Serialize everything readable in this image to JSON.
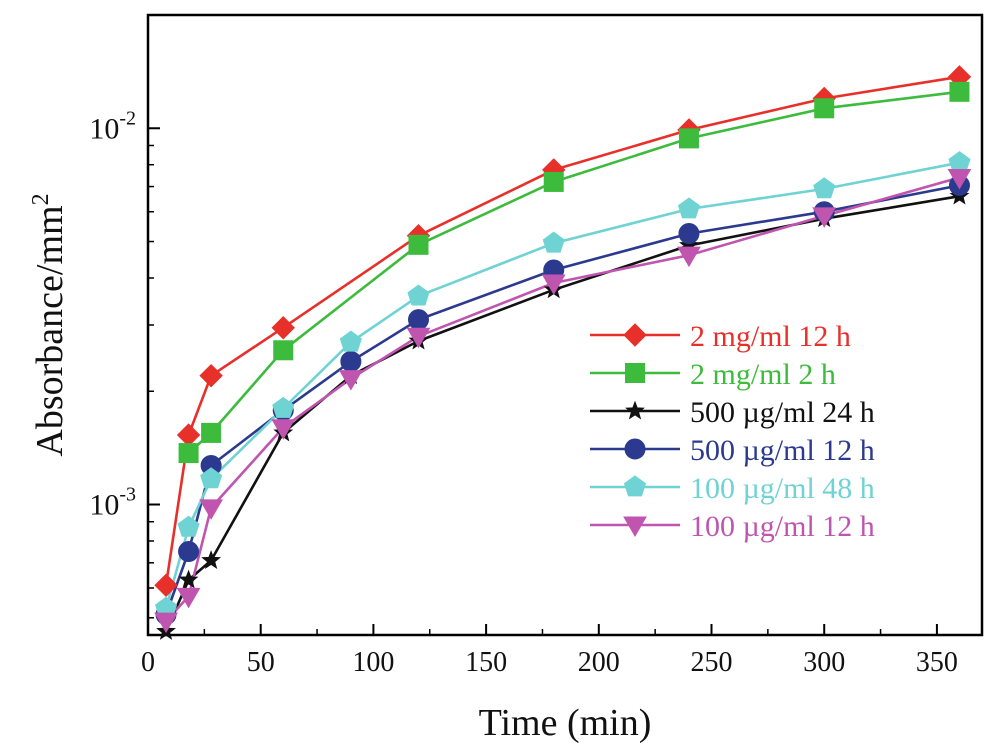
{
  "chart_data": {
    "type": "line",
    "xlabel": "Time (min)",
    "ylabel": "Absorbance/mm",
    "ylabel_superscript": "2",
    "xlim": [
      0,
      370
    ],
    "ylim": [
      0.00045,
      0.02
    ],
    "yscale": "log",
    "grid": false,
    "legend_position": "center-right",
    "x_ticks": [
      {
        "value": 0,
        "label": "0"
      },
      {
        "value": 50,
        "label": "50"
      },
      {
        "value": 100,
        "label": "100"
      },
      {
        "value": 150,
        "label": "150"
      },
      {
        "value": 200,
        "label": "200"
      },
      {
        "value": 250,
        "label": "250"
      },
      {
        "value": 300,
        "label": "300"
      },
      {
        "value": 350,
        "label": "350"
      }
    ],
    "y_ticks": [
      {
        "value": 0.001,
        "base": "10",
        "exp": "-3"
      },
      {
        "value": 0.01,
        "base": "10",
        "exp": "-2"
      }
    ],
    "x": [
      8,
      18,
      28,
      60,
      90,
      120,
      180,
      240,
      300,
      360
    ],
    "series": [
      {
        "name": "2 mg/ml 12 h",
        "color": "#e8302b",
        "marker": "diamond",
        "values": [
          0.00061,
          0.00153,
          0.0022,
          0.00295,
          null,
          0.00518,
          0.00775,
          0.0099,
          0.012,
          0.0137
        ]
      },
      {
        "name": "2 mg/ml 2 h",
        "color": "#3dbb3d",
        "marker": "square",
        "values": [
          null,
          0.00137,
          0.00155,
          0.00257,
          null,
          0.0049,
          0.0072,
          0.0094,
          0.0113,
          0.0125
        ]
      },
      {
        "name": "500 µg/ml 24 h",
        "color": "#111111",
        "marker": "star",
        "values": [
          0.00046,
          0.00063,
          0.00071,
          0.00155,
          0.0022,
          0.00272,
          0.00372,
          0.00488,
          0.00575,
          0.0066
        ]
      },
      {
        "name": "500 µg/ml 12 h",
        "color": "#2b3a8f",
        "marker": "circle",
        "values": [
          0.00051,
          0.00075,
          0.00127,
          0.00178,
          0.0024,
          0.0031,
          0.0042,
          0.00525,
          0.006,
          0.00705
        ]
      },
      {
        "name": "100 µg/ml 48 h",
        "color": "#6fd3d3",
        "marker": "pentagon",
        "values": [
          0.00053,
          0.00087,
          0.00117,
          0.0018,
          0.0027,
          0.00358,
          0.00495,
          0.0061,
          0.0069,
          0.0081
        ]
      },
      {
        "name": "100 µg/ml 12 h",
        "color": "#c055b0",
        "marker": "triangle-down",
        "values": [
          0.00049,
          0.00057,
          0.00098,
          0.0016,
          0.00216,
          0.0028,
          0.00388,
          0.0046,
          0.00585,
          0.0074
        ]
      }
    ]
  }
}
